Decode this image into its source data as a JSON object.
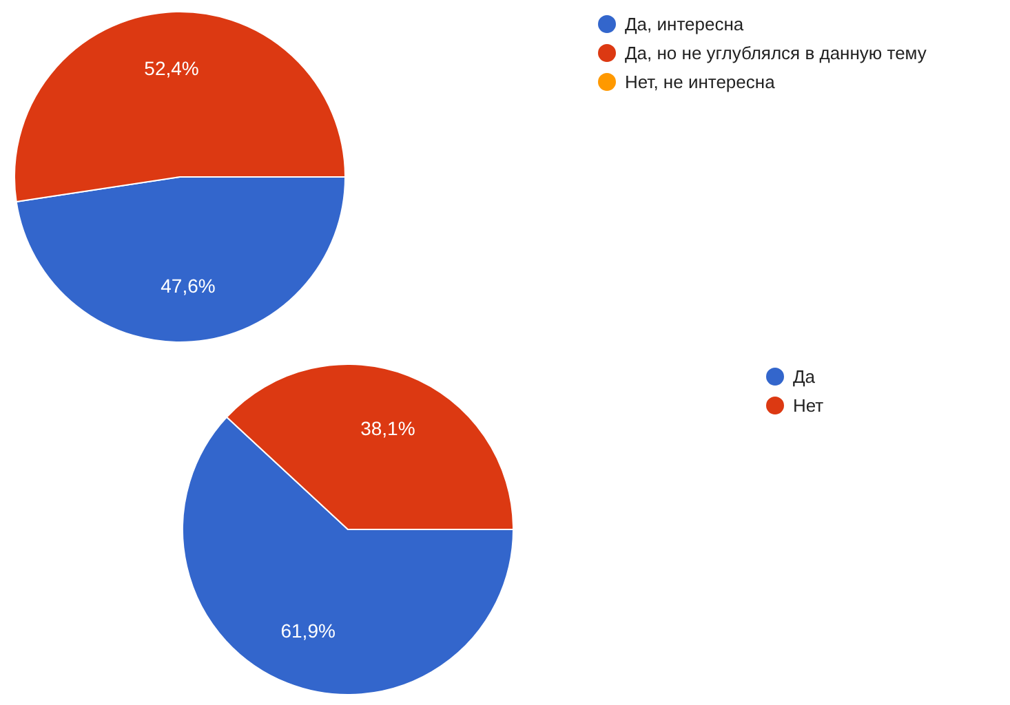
{
  "chart_data": [
    {
      "type": "pie",
      "categories": [
        "Да, интересна",
        "Да, но не углублялся в данную тему",
        "Нет, не интересна"
      ],
      "values": [
        47.6,
        52.4,
        0
      ],
      "colors": [
        "#3366cc",
        "#dc3912",
        "#ff9900"
      ],
      "value_labels": [
        "47,6%",
        "52,4%",
        null
      ],
      "legend": "top right"
    },
    {
      "type": "pie",
      "categories": [
        "Да",
        "Нет"
      ],
      "values": [
        61.9,
        38.1
      ],
      "colors": [
        "#3366cc",
        "#dc3912"
      ],
      "value_labels": [
        "61,9%",
        "38,1%"
      ],
      "legend": "top right"
    }
  ]
}
